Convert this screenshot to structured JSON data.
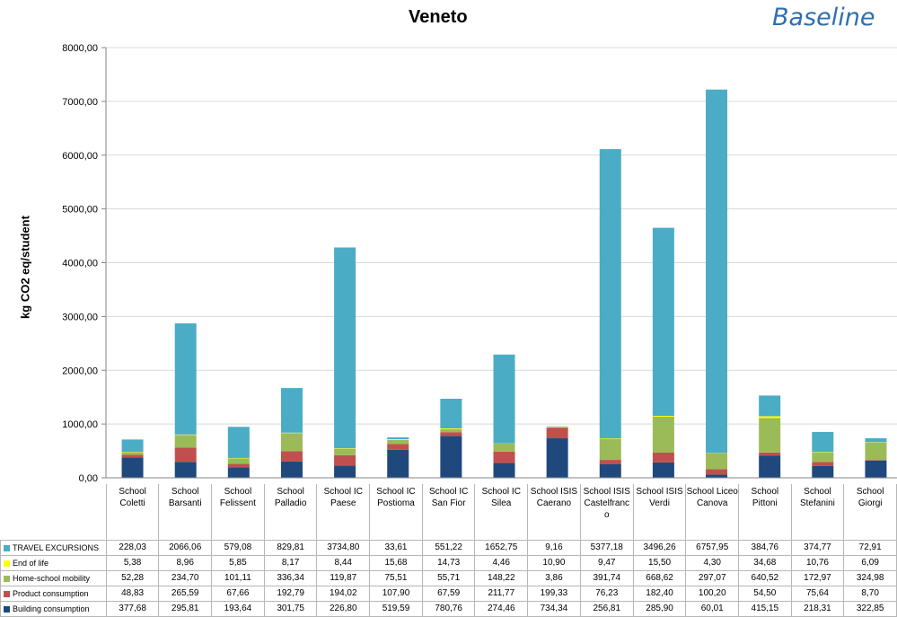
{
  "chart_data": {
    "type": "bar",
    "stacked": true,
    "title": "Veneto",
    "tag": "Baseline",
    "ylabel": "kg CO2 eq/student",
    "ylim": [
      0,
      8000
    ],
    "yticks": [
      "0,00",
      "1000,00",
      "2000,00",
      "3000,00",
      "4000,00",
      "5000,00",
      "6000,00",
      "7000,00",
      "8000,00"
    ],
    "grid": true,
    "legend": "data-table",
    "categories": [
      "School Coletti",
      "School Barsanti",
      "School Felissent",
      "School Palladio",
      "School IC Paese",
      "School IC Postioma",
      "School IC San Fior",
      "School IC Silea",
      "School ISIS Caerano",
      "School ISIS Castelfranco",
      "School ISIS Verdi",
      "School Liceo Canova",
      "School Pittoni",
      "School Stefanini",
      "School Giorgi"
    ],
    "series": [
      {
        "name": "Building consumption",
        "color": "#1f497d",
        "values": [
          377.68,
          295.81,
          193.64,
          301.75,
          226.8,
          519.59,
          780.76,
          274.46,
          734.34,
          256.81,
          285.9,
          60.01,
          415.15,
          218.31,
          322.85
        ],
        "labels": [
          "377,68",
          "295,81",
          "193,64",
          "301,75",
          "226,80",
          "519,59",
          "780,76",
          "274,46",
          "734,34",
          "256,81",
          "285,90",
          "60,01",
          "415,15",
          "218,31",
          "322,85"
        ]
      },
      {
        "name": "Product consumption",
        "color": "#c0504d",
        "values": [
          48.83,
          265.59,
          67.66,
          192.79,
          194.02,
          107.9,
          67.59,
          211.77,
          199.33,
          76.23,
          182.4,
          100.2,
          54.5,
          75.64,
          8.7
        ],
        "labels": [
          "48,83",
          "265,59",
          "67,66",
          "192,79",
          "194,02",
          "107,90",
          "67,59",
          "211,77",
          "199,33",
          "76,23",
          "182,40",
          "100,20",
          "54,50",
          "75,64",
          "8,70"
        ]
      },
      {
        "name": "Home-school mobility",
        "color": "#9bbb59",
        "values": [
          52.28,
          234.7,
          101.11,
          336.34,
          119.87,
          75.51,
          55.71,
          148.22,
          3.86,
          391.74,
          668.62,
          297.07,
          640.52,
          172.97,
          324.98
        ],
        "labels": [
          "52,28",
          "234,70",
          "101,11",
          "336,34",
          "119,87",
          "75,51",
          "55,71",
          "148,22",
          "3,86",
          "391,74",
          "668,62",
          "297,07",
          "640,52",
          "172,97",
          "324,98"
        ]
      },
      {
        "name": "End of life",
        "color": "#ffff00",
        "values": [
          5.38,
          8.96,
          5.85,
          8.17,
          8.44,
          15.68,
          14.73,
          4.46,
          10.9,
          9.47,
          15.5,
          4.3,
          34.68,
          10.76,
          6.09
        ],
        "labels": [
          "5,38",
          "8,96",
          "5,85",
          "8,17",
          "8,44",
          "15,68",
          "14,73",
          "4,46",
          "10,90",
          "9,47",
          "15,50",
          "4,30",
          "34,68",
          "10,76",
          "6,09"
        ]
      },
      {
        "name": "TRAVEL EXCURSIONS",
        "color": "#4bacc6",
        "values": [
          228.03,
          2066.06,
          579.08,
          829.81,
          3734.8,
          33.61,
          551.22,
          1652.75,
          9.16,
          5377.18,
          3496.26,
          6757.95,
          384.76,
          374.77,
          72.91
        ],
        "labels": [
          "228,03",
          "2066,06",
          "579,08",
          "829,81",
          "3734,80",
          "33,61",
          "551,22",
          "1652,75",
          "9,16",
          "5377,18",
          "3496,26",
          "6757,95",
          "384,76",
          "374,77",
          "72,91"
        ]
      }
    ]
  },
  "table": {
    "headers": [
      "School Coletti",
      "School Barsanti",
      "School Felissent",
      "School Palladio",
      "School IC Paese",
      "School IC Postioma",
      "School IC San Fior",
      "School IC Silea",
      "School ISIS Caerano",
      "School ISIS Castelfranc o",
      "School ISIS Verdi",
      "School Liceo Canova",
      "School Pittoni",
      "School Stefanini",
      "School Giorgi"
    ],
    "row_order": [
      4,
      3,
      2,
      1,
      0
    ]
  }
}
